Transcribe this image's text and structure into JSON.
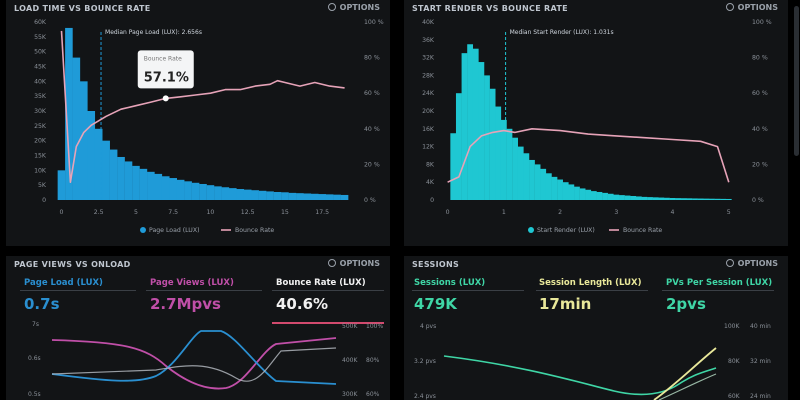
{
  "colors": {
    "bar1": "#1f9bd8",
    "bar2": "#1fc7d2",
    "pink": "#e6a3b8",
    "bg": "#121416",
    "magenta": "#c04fa8",
    "blue": "#2a8fd0",
    "yellow": "#e9e89a",
    "green": "#3fd6a6",
    "accent": "#d24a6e"
  },
  "options_label": "OPTIONS",
  "panels": {
    "load": {
      "title": "LOAD TIME VS BOUNCE RATE"
    },
    "render": {
      "title": "START RENDER VS BOUNCE RATE"
    },
    "pageviews": {
      "title": "PAGE VIEWS VS ONLOAD"
    },
    "sessions": {
      "title": "SESSIONS"
    }
  },
  "chart_data": [
    {
      "type": "bar",
      "categories": [
        "0",
        "0.5",
        "1",
        "1.5",
        "2",
        "2.5",
        "3",
        "3.5",
        "4",
        "4.5",
        "5",
        "5.5",
        "6",
        "6.5",
        "7",
        "7.5",
        "8",
        "8.5",
        "9",
        "9.5",
        "10",
        "10.5",
        "11",
        "11.5",
        "12",
        "12.5",
        "13",
        "13.5",
        "14",
        "14.5",
        "15",
        "15.5",
        "16",
        "16.5",
        "17",
        "17.5",
        "18",
        "18.5",
        "19"
      ],
      "series": [
        {
          "name": "Page Load (LUX)",
          "axis": "left",
          "values": [
            10000,
            58000,
            48000,
            40000,
            30000,
            24000,
            20000,
            17000,
            14500,
            13000,
            11500,
            10500,
            9500,
            8800,
            8000,
            7400,
            6800,
            6300,
            5800,
            5400,
            5000,
            4600,
            4300,
            4000,
            3700,
            3500,
            3300,
            3100,
            2900,
            2700,
            2600,
            2400,
            2300,
            2200,
            2100,
            2000,
            1900,
            1800,
            1700
          ]
        },
        {
          "name": "Bounce Rate",
          "type": "line",
          "axis": "right",
          "x": [
            0,
            0.6,
            1,
            1.5,
            2,
            3,
            4,
            5,
            6,
            7,
            8,
            9,
            10,
            11,
            12,
            13,
            14,
            14.5,
            15,
            16,
            17,
            18,
            19
          ],
          "values": [
            95,
            10,
            30,
            38,
            42,
            47,
            51,
            53,
            55,
            57.1,
            58,
            59,
            60,
            62,
            62,
            64,
            65,
            67,
            66,
            64,
            66,
            64,
            63
          ]
        }
      ],
      "annotation": {
        "label": "Median Page Load (LUX): 2.656s",
        "x": 2.656
      },
      "tooltip": {
        "title": "Bounce Rate",
        "value": "57.1%"
      },
      "x_ticks": [
        "0",
        "2.5",
        "5",
        "7.5",
        "10",
        "12.5",
        "15",
        "17.5"
      ],
      "y_left_ticks": [
        "0",
        "5K",
        "10K",
        "15K",
        "20K",
        "25K",
        "30K",
        "35K",
        "40K",
        "45K",
        "50K",
        "55K",
        "60K"
      ],
      "y_right_ticks": [
        "0 %",
        "20 %",
        "40 %",
        "60 %",
        "80 %",
        "100 %"
      ],
      "ylim_left": [
        0,
        60000
      ],
      "ylim_right": [
        0,
        100
      ],
      "xlim": [
        -0.5,
        19.5
      ],
      "legend": [
        "Page Load (LUX)",
        "Bounce Rate"
      ]
    },
    {
      "type": "bar",
      "categories": [
        "0.1",
        "0.2",
        "0.3",
        "0.4",
        "0.5",
        "0.6",
        "0.7",
        "0.8",
        "0.9",
        "1.0",
        "1.1",
        "1.2",
        "1.3",
        "1.4",
        "1.5",
        "1.6",
        "1.7",
        "1.8",
        "1.9",
        "2.0",
        "2.1",
        "2.2",
        "2.3",
        "2.4",
        "2.5",
        "2.6",
        "2.7",
        "2.8",
        "2.9",
        "3.0",
        "3.1",
        "3.2",
        "3.3",
        "3.4",
        "3.5",
        "3.6",
        "3.7",
        "3.8",
        "3.9",
        "4.0",
        "4.1",
        "4.2",
        "4.3",
        "4.4",
        "4.5",
        "4.6",
        "4.7",
        "4.8",
        "4.9",
        "5.0"
      ],
      "series": [
        {
          "name": "Start Render (LUX)",
          "axis": "left",
          "values": [
            15000,
            24000,
            33000,
            35000,
            34000,
            31000,
            28000,
            25000,
            21000,
            18000,
            16000,
            14000,
            12000,
            10500,
            9000,
            8000,
            7000,
            6000,
            5200,
            4600,
            4000,
            3500,
            3000,
            2600,
            2300,
            2000,
            1800,
            1600,
            1400,
            1200,
            1100,
            1000,
            900,
            800,
            700,
            650,
            600,
            550,
            500,
            450,
            420,
            400,
            380,
            350,
            330,
            310,
            290,
            270,
            250,
            230
          ]
        },
        {
          "name": "Bounce Rate",
          "type": "line",
          "axis": "right",
          "x": [
            0,
            0.2,
            0.4,
            0.6,
            0.8,
            1.0,
            1.2,
            1.5,
            2.0,
            2.5,
            3.0,
            3.5,
            4.0,
            4.5,
            4.8,
            5.0
          ],
          "values": [
            10,
            13,
            30,
            36,
            38,
            39,
            38,
            40,
            39,
            37,
            36,
            35,
            34,
            33,
            30,
            10
          ]
        }
      ],
      "annotation": {
        "label": "Median Start Render (LUX): 1.031s",
        "x": 1.031
      },
      "x_ticks": [
        "0",
        "1",
        "2",
        "3",
        "4",
        "5"
      ],
      "y_left_ticks": [
        "0",
        "4K",
        "8K",
        "12K",
        "16K",
        "20K",
        "24K",
        "28K",
        "32K",
        "36K",
        "40K"
      ],
      "y_right_ticks": [
        "0 %",
        "20 %",
        "40 %",
        "60 %",
        "80 %",
        "100 %"
      ],
      "ylim_left": [
        0,
        40000
      ],
      "ylim_right": [
        0,
        100
      ],
      "xlim": [
        -0.1,
        5.2
      ],
      "legend": [
        "Start Render (LUX)",
        "Bounce Rate"
      ]
    }
  ],
  "pageviews": {
    "metrics": [
      {
        "label": "Page Load (LUX)",
        "value": "0.7s",
        "color": "#2a8fd0"
      },
      {
        "label": "Page Views (LUX)",
        "value": "2.7Mpvs",
        "color": "#c04fa8"
      },
      {
        "label": "Bounce Rate (LUX)",
        "value": "40.6%",
        "color": "#f1f1f1"
      }
    ],
    "left_ticks": [
      "7s",
      "0.6s",
      "0.5s"
    ],
    "right_ticks_a": [
      "500K",
      "400K",
      "300K"
    ],
    "right_ticks_b": [
      "100%",
      "80%",
      "60%"
    ]
  },
  "sessions": {
    "metrics": [
      {
        "label": "Sessions (LUX)",
        "value": "479K",
        "color": "#3fd6a6"
      },
      {
        "label": "Session Length (LUX)",
        "value": "17min",
        "color": "#e9e89a"
      },
      {
        "label": "PVs Per Session (LUX)",
        "value": "2pvs",
        "color": "#3fd6a6"
      }
    ],
    "left_ticks": [
      "4 pvs",
      "3.2 pvs",
      "2.4 pvs"
    ],
    "right_ticks_a": [
      "100K",
      "80K",
      "60K"
    ],
    "right_ticks_b": [
      "40 min",
      "32 min",
      "24 min"
    ]
  }
}
